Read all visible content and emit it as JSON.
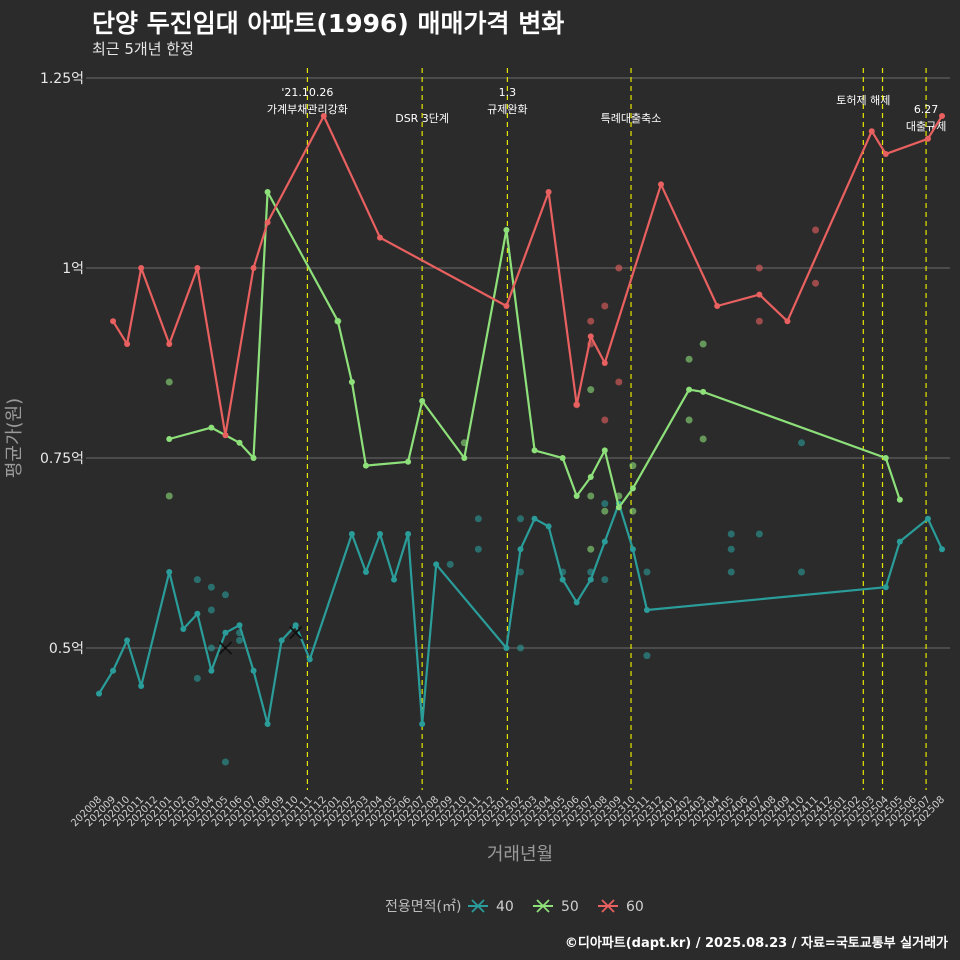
{
  "header": {
    "title": "단양 두진임대 아파트(1996) 매매가격 변화",
    "subtitle": "최근 5개년 한정"
  },
  "caption": "©디아파트(dapt.kr) / 2025.08.23 / 자료=국토교통부 실거래가",
  "colors": {
    "background": "#2b2b2b",
    "grid": "#6b6b6b",
    "event_line": "#e6e600",
    "s40": "#2a9d9a",
    "s50": "#8ee07a",
    "s60": "#e8605f"
  },
  "chart_data": {
    "type": "line",
    "title": "단양 두진임대 아파트(1996) 매매가격 변화",
    "subtitle": "최근 5개년 한정",
    "xlabel": "거래년월",
    "ylabel": "평균가(원)",
    "ylim": [
      0.3,
      1.26
    ],
    "yticks": [
      {
        "value": 0.5,
        "label": "0.5억"
      },
      {
        "value": 0.75,
        "label": "0.75억"
      },
      {
        "value": 1.0,
        "label": "1억"
      },
      {
        "value": 1.25,
        "label": "1.25억"
      }
    ],
    "grid": true,
    "legend": {
      "position": "bottom",
      "title": "전용면적(㎡)"
    },
    "x_start": "2020-08",
    "x_end": "2025-08",
    "x_ticks": [
      "202008",
      "202009",
      "202010",
      "202011",
      "202012",
      "202101",
      "202102",
      "202103",
      "202104",
      "202105",
      "202106",
      "202107",
      "202108",
      "202109",
      "202110",
      "202111",
      "202112",
      "202201",
      "202202",
      "202203",
      "202204",
      "202205",
      "202206",
      "202207",
      "202208",
      "202209",
      "202210",
      "202211",
      "202212",
      "202301",
      "202302",
      "202303",
      "202304",
      "202305",
      "202306",
      "202307",
      "202308",
      "202309",
      "202310",
      "202311",
      "202312",
      "202401",
      "202402",
      "202403",
      "202404",
      "202405",
      "202406",
      "202407",
      "202408",
      "202409",
      "202410",
      "202411",
      "202412",
      "202501",
      "202502",
      "202503",
      "202504",
      "202505",
      "202506",
      "202507",
      "202508"
    ],
    "events": [
      {
        "date": "2021-10-26",
        "lines": [
          "'21.10.26",
          "가계부채관리강화"
        ]
      },
      {
        "date": "2022-07-01",
        "lines": [
          "DSR 3단계"
        ]
      },
      {
        "date": "2023-01-03",
        "lines": [
          "1.3",
          "규제완화"
        ]
      },
      {
        "date": "2023-09-27",
        "lines": [
          "특례대출축소"
        ]
      },
      {
        "date": "2025-02-13",
        "lines": [
          "토허제 해제"
        ]
      },
      {
        "date": "2025-03-24",
        "lines": []
      },
      {
        "date": "2025-06-27",
        "lines": [
          "6.27",
          "대출규제"
        ]
      }
    ],
    "series": [
      {
        "name": "40",
        "color": "#2a9d9a",
        "line": [
          [
            "2020-08",
            0.44
          ],
          [
            "2020-09",
            0.47
          ],
          [
            "2020-10",
            0.51
          ],
          [
            "2020-11",
            0.45
          ],
          [
            "2021-01",
            0.6
          ],
          [
            "2021-02",
            0.525
          ],
          [
            "2021-03",
            0.545
          ],
          [
            "2021-04",
            0.47
          ],
          [
            "2021-05",
            0.52
          ],
          [
            "2021-06",
            0.53
          ],
          [
            "2021-07",
            0.47
          ],
          [
            "2021-08",
            0.4
          ],
          [
            "2021-09",
            0.51
          ],
          [
            "2021-10",
            0.53
          ],
          [
            "2021-11",
            0.485
          ],
          [
            "2022-02",
            0.65
          ],
          [
            "2022-03",
            0.6
          ],
          [
            "2022-04",
            0.65
          ],
          [
            "2022-05",
            0.59
          ],
          [
            "2022-06",
            0.65
          ],
          [
            "2022-07",
            0.4
          ],
          [
            "2022-08",
            0.61
          ],
          [
            "2023-01",
            0.5
          ],
          [
            "2023-02",
            0.63
          ],
          [
            "2023-03",
            0.67
          ],
          [
            "2023-04",
            0.66
          ],
          [
            "2023-05",
            0.59
          ],
          [
            "2023-06",
            0.56
          ],
          [
            "2023-07",
            0.59
          ],
          [
            "2023-08",
            0.64
          ],
          [
            "2023-09",
            0.69
          ],
          [
            "2023-10",
            0.63
          ],
          [
            "2023-11",
            0.55
          ],
          [
            "2025-04",
            0.58
          ],
          [
            "2025-05",
            0.64
          ],
          [
            "2025-07",
            0.67
          ],
          [
            "2025-08",
            0.63
          ]
        ],
        "points": [
          [
            "2021-03",
            0.46
          ],
          [
            "2021-03",
            0.59
          ],
          [
            "2021-04",
            0.58
          ],
          [
            "2021-04",
            0.55
          ],
          [
            "2021-04",
            0.5
          ],
          [
            "2021-05",
            0.57
          ],
          [
            "2021-05",
            0.35
          ],
          [
            "2021-06",
            0.51
          ],
          [
            "2021-06",
            0.52
          ],
          [
            "2022-09",
            0.61
          ],
          [
            "2022-11",
            0.67
          ],
          [
            "2022-11",
            0.63
          ],
          [
            "2023-02",
            0.5
          ],
          [
            "2023-02",
            0.67
          ],
          [
            "2023-02",
            0.6
          ],
          [
            "2023-05",
            0.6
          ],
          [
            "2023-07",
            0.6
          ],
          [
            "2023-08",
            0.59
          ],
          [
            "2023-08",
            0.69
          ],
          [
            "2023-11",
            0.6
          ],
          [
            "2023-11",
            0.49
          ],
          [
            "2024-05",
            0.65
          ],
          [
            "2024-05",
            0.63
          ],
          [
            "2024-05",
            0.6
          ],
          [
            "2024-07",
            0.65
          ],
          [
            "2024-10",
            0.77
          ],
          [
            "2024-10",
            0.6
          ]
        ],
        "crosses": [
          [
            "2021-05",
            0.5
          ],
          [
            "2021-10",
            0.52
          ]
        ]
      },
      {
        "name": "50",
        "color": "#8ee07a",
        "line": [
          [
            "2021-01",
            0.775
          ],
          [
            "2021-04",
            0.79
          ],
          [
            "2021-06",
            0.77
          ],
          [
            "2021-07",
            0.75
          ],
          [
            "2021-08",
            1.1
          ],
          [
            "2022-01",
            0.93
          ],
          [
            "2022-02",
            0.85
          ],
          [
            "2022-03",
            0.74
          ],
          [
            "2022-06",
            0.745
          ],
          [
            "2022-07",
            0.825
          ],
          [
            "2022-10",
            0.75
          ],
          [
            "2023-01",
            1.05
          ],
          [
            "2023-03",
            0.76
          ],
          [
            "2023-05",
            0.75
          ],
          [
            "2023-06",
            0.7
          ],
          [
            "2023-07",
            0.725
          ],
          [
            "2023-08",
            0.76
          ],
          [
            "2023-09",
            0.685
          ],
          [
            "2023-10",
            0.71
          ],
          [
            "2024-02",
            0.84
          ],
          [
            "2024-03",
            0.837
          ],
          [
            "2025-04",
            0.75
          ],
          [
            "2025-05",
            0.695
          ]
        ],
        "points": [
          [
            "2021-01",
            0.85
          ],
          [
            "2021-01",
            0.7
          ],
          [
            "2022-01",
            0.93
          ],
          [
            "2022-10",
            0.77
          ],
          [
            "2023-07",
            0.84
          ],
          [
            "2023-07",
            0.7
          ],
          [
            "2023-07",
            0.63
          ],
          [
            "2023-08",
            0.68
          ],
          [
            "2023-09",
            0.7
          ],
          [
            "2023-10",
            0.74
          ],
          [
            "2023-10",
            0.68
          ],
          [
            "2024-02",
            0.88
          ],
          [
            "2024-02",
            0.8
          ],
          [
            "2024-03",
            0.9
          ],
          [
            "2024-03",
            0.775
          ]
        ],
        "crosses": []
      },
      {
        "name": "60",
        "color": "#e8605f",
        "line": [
          [
            "2020-09",
            0.93
          ],
          [
            "2020-10",
            0.9
          ],
          [
            "2020-11",
            1.0
          ],
          [
            "2021-01",
            0.9
          ],
          [
            "2021-03",
            1.0
          ],
          [
            "2021-05",
            0.78
          ],
          [
            "2021-07",
            1.0
          ],
          [
            "2021-08",
            1.06
          ],
          [
            "2021-12",
            1.2
          ],
          [
            "2022-04",
            1.04
          ],
          [
            "2023-01",
            0.95
          ],
          [
            "2023-04",
            1.1
          ],
          [
            "2023-06",
            0.82
          ],
          [
            "2023-07",
            0.91
          ],
          [
            "2023-08",
            0.875
          ],
          [
            "2023-12",
            1.11
          ],
          [
            "2024-04",
            0.95
          ],
          [
            "2024-07",
            0.965
          ],
          [
            "2024-09",
            0.93
          ],
          [
            "2025-03",
            1.18
          ],
          [
            "2025-04",
            1.15
          ],
          [
            "2025-07",
            1.17
          ],
          [
            "2025-08",
            1.2
          ]
        ],
        "points": [
          [
            "2023-06",
            0.82
          ],
          [
            "2023-07",
            0.93
          ],
          [
            "2023-07",
            0.9
          ],
          [
            "2023-08",
            0.95
          ],
          [
            "2023-08",
            0.8
          ],
          [
            "2023-09",
            1.0
          ],
          [
            "2023-09",
            0.85
          ],
          [
            "2024-07",
            1.0
          ],
          [
            "2024-07",
            0.93
          ],
          [
            "2024-11",
            1.05
          ],
          [
            "2024-11",
            0.98
          ]
        ],
        "crosses": []
      }
    ]
  }
}
